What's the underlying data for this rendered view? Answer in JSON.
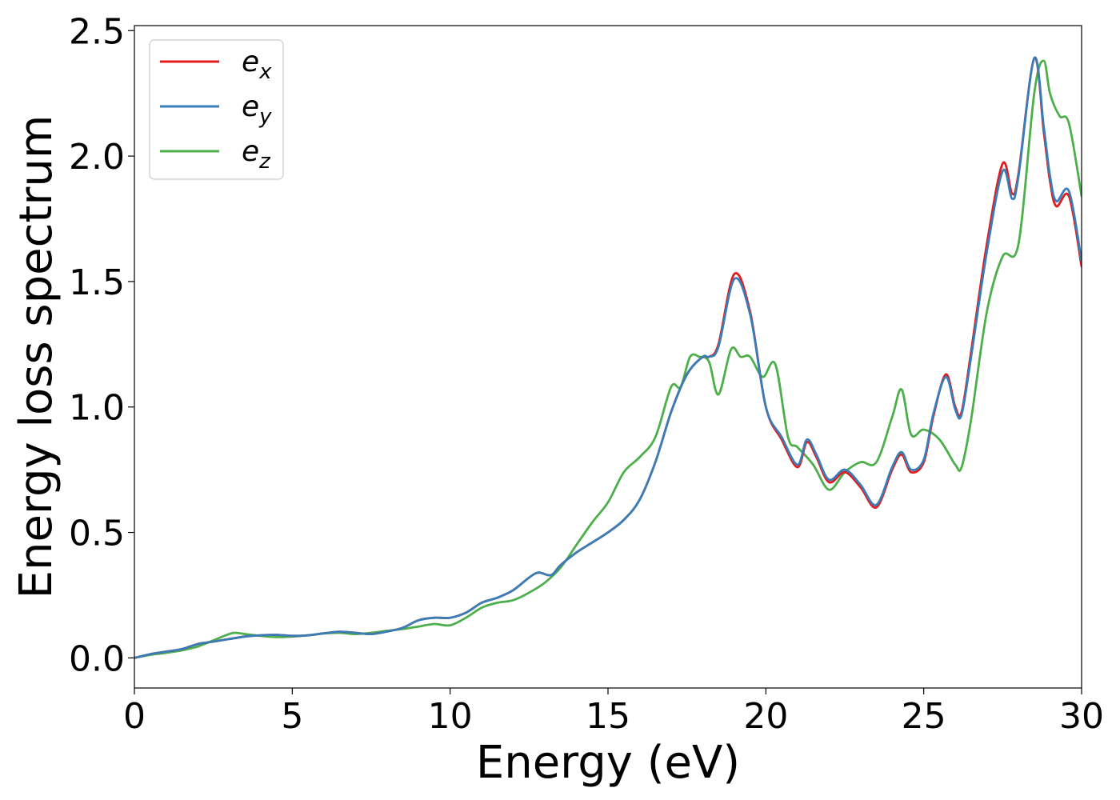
{
  "chart_data": {
    "type": "line",
    "xlabel": "Energy (eV)",
    "ylabel": "Energy loss spectrum",
    "xlim": [
      0,
      30
    ],
    "ylim": [
      -0.12,
      2.52
    ],
    "xticks": [
      0,
      5,
      10,
      15,
      20,
      25,
      30
    ],
    "xtick_labels": [
      "0",
      "5",
      "10",
      "15",
      "20",
      "25",
      "30"
    ],
    "yticks": [
      0.0,
      0.5,
      1.0,
      1.5,
      2.0,
      2.5
    ],
    "ytick_labels": [
      "0.0",
      "0.5",
      "1.0",
      "1.5",
      "2.0",
      "2.5"
    ],
    "grid": false,
    "legend_position": "top-left",
    "series": [
      {
        "name": "e",
        "subscript": "x",
        "color": "#e41a1c",
        "x": [
          0,
          0.5,
          1,
          1.5,
          2,
          2.5,
          3,
          3.5,
          4,
          4.5,
          5,
          5.5,
          6,
          6.5,
          7,
          7.5,
          8,
          8.5,
          9,
          9.5,
          10,
          10.5,
          11,
          11.5,
          12,
          12.5,
          12.8,
          13.2,
          13.5,
          14,
          14.5,
          15,
          15.5,
          16,
          16.5,
          17,
          17.5,
          18,
          18.2,
          18.5,
          19,
          19.5,
          20,
          20.5,
          21,
          21.3,
          21.6,
          22,
          22.5,
          23,
          23.5,
          24,
          24.3,
          24.6,
          25,
          25.3,
          25.7,
          26,
          26.2,
          26.5,
          27,
          27.5,
          27.8,
          28,
          28.5,
          28.8,
          29,
          29.2,
          29.6,
          30
        ],
        "y": [
          0.0,
          0.015,
          0.025,
          0.035,
          0.055,
          0.065,
          0.075,
          0.085,
          0.09,
          0.092,
          0.088,
          0.09,
          0.098,
          0.104,
          0.1,
          0.095,
          0.105,
          0.12,
          0.15,
          0.16,
          0.16,
          0.18,
          0.22,
          0.24,
          0.27,
          0.32,
          0.34,
          0.33,
          0.37,
          0.42,
          0.46,
          0.5,
          0.55,
          0.63,
          0.78,
          0.98,
          1.13,
          1.2,
          1.2,
          1.25,
          1.53,
          1.38,
          1.0,
          0.87,
          0.76,
          0.86,
          0.8,
          0.7,
          0.74,
          0.68,
          0.6,
          0.75,
          0.81,
          0.74,
          0.78,
          0.96,
          1.13,
          1.0,
          0.98,
          1.22,
          1.65,
          1.97,
          1.85,
          1.93,
          2.39,
          2.1,
          1.9,
          1.8,
          1.84,
          1.56
        ]
      },
      {
        "name": "e",
        "subscript": "y",
        "color": "#377eb8",
        "x": [
          0,
          0.5,
          1,
          1.5,
          2,
          2.5,
          3,
          3.5,
          4,
          4.5,
          5,
          5.5,
          6,
          6.5,
          7,
          7.5,
          8,
          8.5,
          9,
          9.5,
          10,
          10.5,
          11,
          11.5,
          12,
          12.5,
          12.8,
          13.2,
          13.5,
          14,
          14.5,
          15,
          15.5,
          16,
          16.5,
          17,
          17.5,
          18,
          18.2,
          18.5,
          19,
          19.5,
          20,
          20.5,
          21,
          21.3,
          21.6,
          22,
          22.5,
          23,
          23.5,
          24,
          24.3,
          24.6,
          25,
          25.3,
          25.7,
          26,
          26.2,
          26.5,
          27,
          27.5,
          27.8,
          28,
          28.5,
          28.8,
          29,
          29.2,
          29.6,
          30
        ],
        "y": [
          0.0,
          0.015,
          0.025,
          0.035,
          0.055,
          0.065,
          0.075,
          0.085,
          0.09,
          0.092,
          0.088,
          0.09,
          0.098,
          0.104,
          0.1,
          0.095,
          0.105,
          0.12,
          0.15,
          0.16,
          0.16,
          0.18,
          0.22,
          0.24,
          0.27,
          0.32,
          0.34,
          0.33,
          0.37,
          0.42,
          0.46,
          0.5,
          0.55,
          0.63,
          0.78,
          0.98,
          1.13,
          1.2,
          1.2,
          1.24,
          1.51,
          1.37,
          1.0,
          0.88,
          0.77,
          0.87,
          0.81,
          0.71,
          0.75,
          0.69,
          0.61,
          0.76,
          0.82,
          0.75,
          0.79,
          0.97,
          1.12,
          0.99,
          0.97,
          1.2,
          1.62,
          1.94,
          1.83,
          1.92,
          2.39,
          2.12,
          1.92,
          1.82,
          1.86,
          1.58
        ]
      },
      {
        "name": "e",
        "subscript": "z",
        "color": "#4daf4a",
        "x": [
          0,
          0.5,
          1,
          1.5,
          2,
          2.5,
          3,
          3.2,
          3.5,
          4,
          4.5,
          5,
          5.5,
          6,
          6.5,
          7,
          7.5,
          8,
          8.5,
          9,
          9.5,
          10,
          10.5,
          11,
          11.5,
          12,
          12.5,
          13,
          13.5,
          14,
          14.5,
          15,
          15.5,
          16,
          16.5,
          17,
          17.3,
          17.6,
          17.9,
          18.2,
          18.5,
          18.9,
          19.2,
          19.5,
          19.9,
          20.3,
          20.7,
          21,
          21.5,
          22,
          22.5,
          23,
          23.5,
          24,
          24.3,
          24.6,
          25,
          25.5,
          26,
          26.2,
          26.5,
          27,
          27.5,
          28,
          28.5,
          28.8,
          29,
          29.3,
          29.6,
          30
        ],
        "y": [
          0.0,
          0.012,
          0.02,
          0.03,
          0.045,
          0.07,
          0.095,
          0.1,
          0.095,
          0.088,
          0.083,
          0.085,
          0.09,
          0.097,
          0.1,
          0.095,
          0.1,
          0.108,
          0.115,
          0.125,
          0.135,
          0.13,
          0.16,
          0.2,
          0.22,
          0.23,
          0.26,
          0.3,
          0.36,
          0.45,
          0.54,
          0.62,
          0.74,
          0.8,
          0.88,
          1.08,
          1.08,
          1.2,
          1.2,
          1.18,
          1.05,
          1.23,
          1.2,
          1.2,
          1.12,
          1.17,
          0.88,
          0.84,
          0.77,
          0.67,
          0.74,
          0.78,
          0.78,
          0.96,
          1.07,
          0.89,
          0.91,
          0.87,
          0.77,
          0.76,
          0.95,
          1.38,
          1.6,
          1.65,
          2.25,
          2.38,
          2.25,
          2.16,
          2.13,
          1.84
        ]
      }
    ]
  }
}
